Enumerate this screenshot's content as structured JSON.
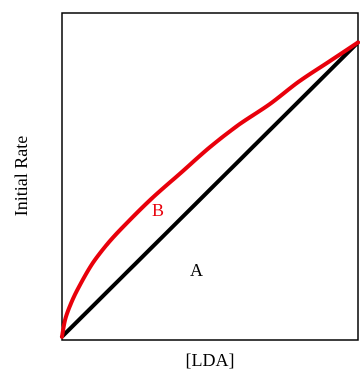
{
  "chart_data": {
    "type": "line",
    "title": "",
    "xlabel": "[LDA]",
    "ylabel": "Initial Rate",
    "xlim": [
      0,
      1
    ],
    "ylim": [
      0,
      1
    ],
    "grid": false,
    "series": [
      {
        "name": "A",
        "color": "#000000",
        "x": [
          0,
          0.1,
          0.2,
          0.3,
          0.4,
          0.5,
          0.6,
          0.7,
          0.8,
          0.9,
          1.0
        ],
        "y": [
          0.01,
          0.1,
          0.19,
          0.28,
          0.37,
          0.46,
          0.55,
          0.64,
          0.73,
          0.82,
          0.91
        ]
      },
      {
        "name": "B",
        "color": "#e8000b",
        "x": [
          0,
          0.01,
          0.025,
          0.05,
          0.1,
          0.15,
          0.2,
          0.3,
          0.4,
          0.5,
          0.6,
          0.7,
          0.8,
          0.9,
          1.0
        ],
        "y": [
          0.01,
          0.06,
          0.1,
          0.15,
          0.23,
          0.29,
          0.34,
          0.43,
          0.51,
          0.59,
          0.66,
          0.72,
          0.79,
          0.85,
          0.91
        ]
      }
    ]
  }
}
